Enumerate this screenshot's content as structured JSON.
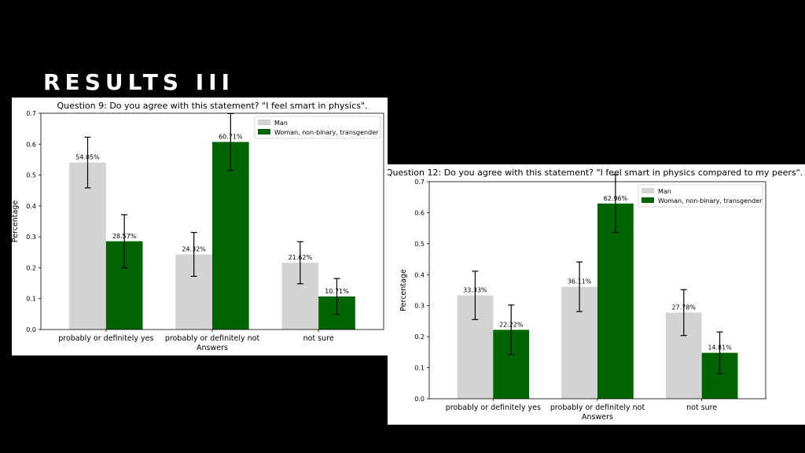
{
  "slide": {
    "title": "RESULTS III"
  },
  "chart_data": [
    {
      "type": "bar",
      "title": "Question 9: Do you agree with this statement? \"I feel smart in physics\".",
      "xlabel": "Answers",
      "ylabel": "Percentage",
      "categories": [
        "probably or definitely yes",
        "probably or definitely not",
        "not sure"
      ],
      "series": [
        {
          "name": "Man",
          "color": "#d3d3d3",
          "values": [
            0.5405,
            0.2432,
            0.2162
          ],
          "errors": [
            0.082,
            0.071,
            0.068
          ],
          "labels": [
            "54.05%",
            "24.32%",
            "21.62%"
          ]
        },
        {
          "name": "Woman, non-binary, transgender",
          "color": "#006400",
          "values": [
            0.2857,
            0.6071,
            0.1071
          ],
          "errors": [
            0.086,
            0.092,
            0.058
          ],
          "labels": [
            "28.57%",
            "60.71%",
            "10.71%"
          ]
        }
      ],
      "ylim": [
        0,
        0.7
      ],
      "yticks": [
        "0.0",
        "0.1",
        "0.2",
        "0.3",
        "0.4",
        "0.5",
        "0.6",
        "0.7"
      ],
      "legend": "top-right",
      "grid": false
    },
    {
      "type": "bar",
      "title": "Question 12: Do you agree with this statement? \"I feel smart in physics compared to my peers\".",
      "xlabel": "Answers",
      "ylabel": "Percentage",
      "categories": [
        "probably or definitely yes",
        "probably or definitely not",
        "not sure"
      ],
      "series": [
        {
          "name": "Man",
          "color": "#d3d3d3",
          "values": [
            0.3333,
            0.3611,
            0.2778
          ],
          "errors": [
            0.078,
            0.08,
            0.074
          ],
          "labels": [
            "33.33%",
            "36.11%",
            "27.78%"
          ]
        },
        {
          "name": "Woman, non-binary, transgender",
          "color": "#006400",
          "values": [
            0.2222,
            0.6296,
            0.1481
          ],
          "errors": [
            0.08,
            0.093,
            0.067
          ],
          "labels": [
            "22.22%",
            "62.96%",
            "14.81%"
          ]
        }
      ],
      "ylim": [
        0,
        0.7
      ],
      "yticks": [
        "0.0",
        "0.1",
        "0.2",
        "0.3",
        "0.4",
        "0.5",
        "0.6",
        "0.7"
      ],
      "legend": "top-right",
      "grid": false
    }
  ]
}
